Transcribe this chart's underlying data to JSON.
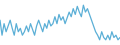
{
  "values": [
    -1.5,
    -2.8,
    -1.8,
    -2.5,
    -2.0,
    -1.5,
    -2.2,
    -2.8,
    -1.8,
    -2.5,
    -2.2,
    -2.8,
    -2.5,
    -2.0,
    -2.5,
    -1.8,
    -2.3,
    -2.8,
    -2.0,
    -1.5,
    -2.0,
    -2.5,
    -1.8,
    -2.2,
    -1.5,
    -2.0,
    -1.8,
    -1.2,
    -1.8,
    -1.0,
    -1.5,
    -1.2,
    -1.8,
    -1.3,
    -0.8,
    -1.2,
    -0.5,
    -1.0,
    -0.3,
    -0.8,
    -1.2,
    -0.2,
    -0.8,
    -0.5,
    -1.0,
    -1.5,
    -2.0,
    -2.5,
    -2.8,
    -3.2,
    -2.5,
    -3.0,
    -3.2,
    -2.8,
    -3.2,
    -2.5,
    -3.0,
    -2.8,
    -3.2,
    -3.0
  ],
  "line_color": "#5bafd6",
  "background_color": "#ffffff",
  "linewidth": 0.9
}
